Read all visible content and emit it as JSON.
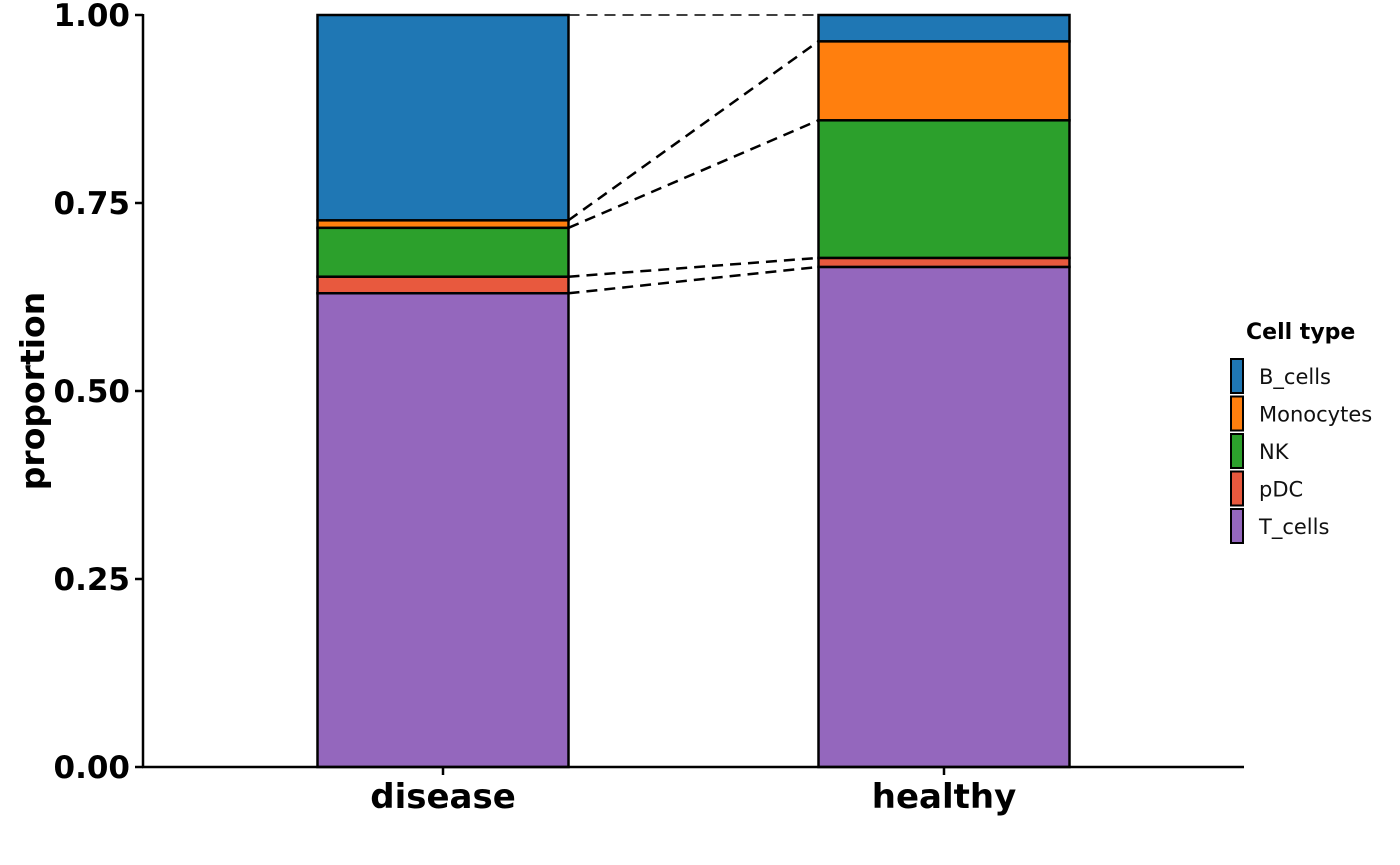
{
  "chart_data": {
    "type": "bar",
    "stacked": true,
    "normalized": true,
    "categories": [
      "disease",
      "healthy"
    ],
    "series": [
      {
        "name": "T_cells",
        "color": "#9467bd",
        "values": [
          0.63,
          0.665
        ]
      },
      {
        "name": "pDC",
        "color": "#e8593e",
        "values": [
          0.022,
          0.012
        ]
      },
      {
        "name": "NK",
        "color": "#2ca02c",
        "values": [
          0.065,
          0.183
        ]
      },
      {
        "name": "Monocytes",
        "color": "#ff7f0e",
        "values": [
          0.01,
          0.105
        ]
      },
      {
        "name": "B_cells",
        "color": "#1f77b4",
        "values": [
          0.273,
          0.035
        ]
      }
    ],
    "title": "",
    "xlabel": "",
    "ylabel": "proportion",
    "ylim": [
      0,
      1
    ],
    "yticks": [
      "0.00",
      "0.25",
      "0.50",
      "0.75",
      "1.00"
    ],
    "legend": {
      "title": "Cell type",
      "position": "right",
      "order": [
        "B_cells",
        "Monocytes",
        "NK",
        "pDC",
        "T_cells"
      ]
    },
    "connectors": "dashed",
    "grid": false
  }
}
